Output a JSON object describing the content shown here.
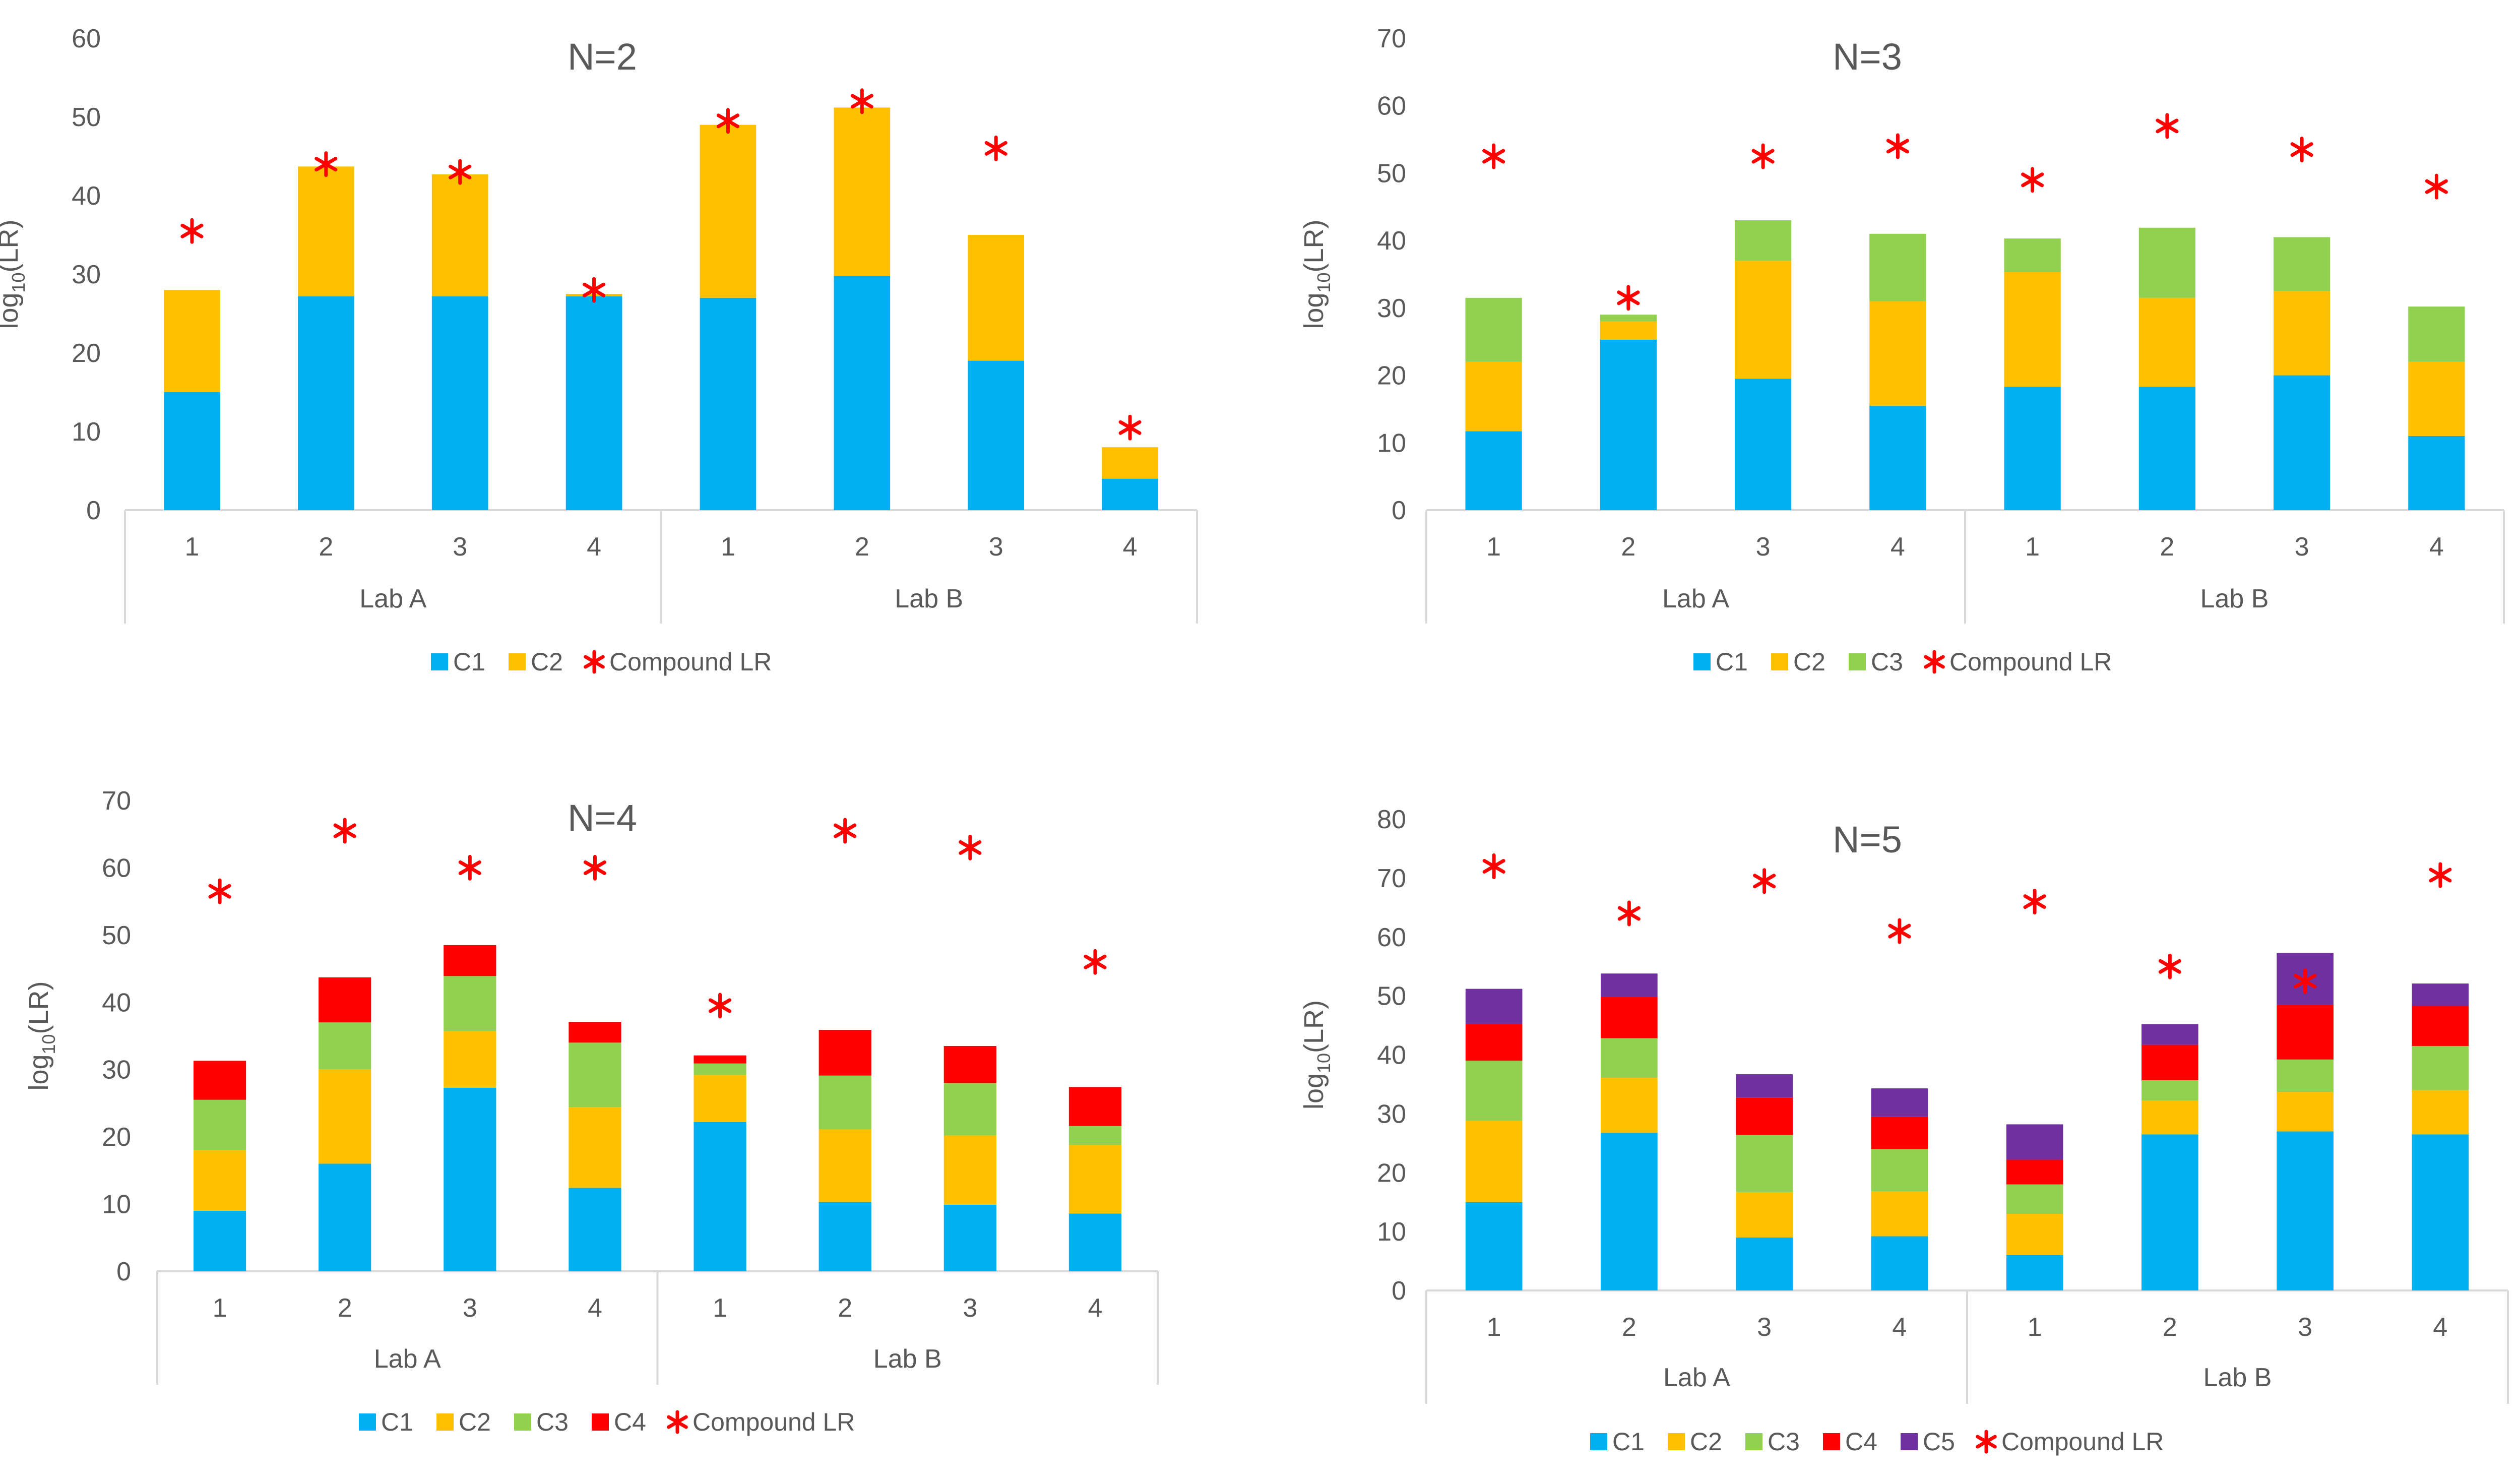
{
  "chart_data": [
    {
      "type": "bar",
      "stacked": true,
      "title": "N=2",
      "ylabel": "log10(LR)",
      "ylim": [
        0,
        60
      ],
      "ystep": 10,
      "groups": [
        "Lab A",
        "Lab B"
      ],
      "categories": [
        "1",
        "2",
        "3",
        "4",
        "1",
        "2",
        "3",
        "4"
      ],
      "series": [
        {
          "name": "C1",
          "values": [
            15,
            27.2,
            27.2,
            27.2,
            27,
            29.8,
            19,
            4
          ]
        },
        {
          "name": "C2",
          "values": [
            13,
            16.5,
            15.5,
            0.3,
            22,
            21.4,
            16,
            4
          ]
        }
      ],
      "compound": {
        "name": "Compound LR",
        "values": [
          35.5,
          44,
          43,
          28,
          49.5,
          52,
          46,
          10.5
        ]
      },
      "legend": "bottom"
    },
    {
      "type": "bar",
      "stacked": true,
      "title": "N=3",
      "ylabel": "log10(LR)",
      "ylim": [
        0,
        70
      ],
      "ystep": 10,
      "groups": [
        "Lab A",
        "Lab B"
      ],
      "categories": [
        "1",
        "2",
        "3",
        "4",
        "1",
        "2",
        "3",
        "4"
      ],
      "series": [
        {
          "name": "C1",
          "values": [
            11.7,
            25.3,
            19.5,
            15.5,
            18.3,
            18.3,
            20,
            11
          ]
        },
        {
          "name": "C2",
          "values": [
            10.3,
            2.7,
            17.5,
            15.5,
            17,
            13.2,
            12.5,
            11
          ]
        },
        {
          "name": "C3",
          "values": [
            9.5,
            1,
            6,
            10,
            5,
            10.4,
            8,
            8.2
          ]
        }
      ],
      "compound": {
        "name": "Compound LR",
        "values": [
          52.5,
          31.5,
          52.5,
          54,
          49,
          57,
          53.5,
          48
        ]
      },
      "legend": "bottom"
    },
    {
      "type": "bar",
      "stacked": true,
      "title": "N=4",
      "ylabel": "log10(LR)",
      "ylim": [
        0,
        70
      ],
      "ystep": 10,
      "groups": [
        "Lab A",
        "Lab B"
      ],
      "categories": [
        "1",
        "2",
        "3",
        "4",
        "1",
        "2",
        "3",
        "4"
      ],
      "series": [
        {
          "name": "C1",
          "values": [
            9,
            16,
            27.3,
            12.4,
            22.2,
            10.3,
            9.9,
            8.6
          ]
        },
        {
          "name": "C2",
          "values": [
            9,
            14,
            8.4,
            12,
            7,
            10.8,
            10.3,
            10.2
          ]
        },
        {
          "name": "C3",
          "values": [
            7.5,
            7,
            8.2,
            9.6,
            1.7,
            8,
            7.8,
            2.8
          ]
        },
        {
          "name": "C4",
          "values": [
            5.8,
            6.7,
            4.6,
            3.1,
            1.2,
            6.8,
            5.5,
            5.8
          ]
        }
      ],
      "compound": {
        "name": "Compound LR",
        "values": [
          56.5,
          65.5,
          60,
          60,
          39.5,
          65.5,
          63,
          46
        ]
      },
      "legend": "bottom"
    },
    {
      "type": "bar",
      "stacked": true,
      "title": "N=5",
      "ylabel": "log10(LR)",
      "ylim": [
        0,
        80
      ],
      "ystep": 10,
      "groups": [
        "Lab A",
        "Lab B"
      ],
      "categories": [
        "1",
        "2",
        "3",
        "4",
        "1",
        "2",
        "3",
        "4"
      ],
      "series": [
        {
          "name": "C1",
          "values": [
            15,
            26.8,
            9,
            9.2,
            6,
            26.5,
            27,
            26.5
          ]
        },
        {
          "name": "C2",
          "values": [
            13.8,
            9.3,
            7.7,
            7.6,
            7,
            5.7,
            6.7,
            7.5
          ]
        },
        {
          "name": "C3",
          "values": [
            10.2,
            6.7,
            9.7,
            7.2,
            5,
            3.5,
            5.5,
            7.5
          ]
        },
        {
          "name": "C4",
          "values": [
            6.2,
            7,
            6.3,
            5.5,
            4.2,
            6,
            9.3,
            6.8
          ]
        },
        {
          "name": "C5",
          "values": [
            6,
            4,
            4,
            4.8,
            6,
            3.5,
            8.8,
            3.8
          ]
        }
      ],
      "compound": {
        "name": "Compound LR",
        "values": [
          72,
          64,
          69.5,
          61,
          66,
          55,
          52.5,
          70.5
        ]
      },
      "legend": "bottom"
    }
  ],
  "colors": {
    "C1": "#00b0f0",
    "C2": "#ffc000",
    "C3": "#92d050",
    "C4": "#ff0000",
    "C5": "#7030a0",
    "compound": "#ff0000",
    "axis": "#d9d9d9",
    "text": "#595959"
  }
}
